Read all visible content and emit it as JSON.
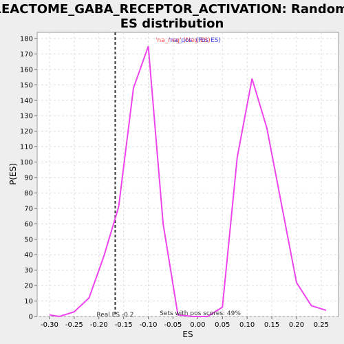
{
  "chart_data": {
    "type": "line",
    "title": "REACTOME_GABA_RECEPTOR_ACTIVATION: Random ES distribution",
    "title_lines": [
      "REACTOME_GABA_RECEPTOR_ACTIVATION: Random",
      "ES distribution"
    ],
    "xlabel": "ES",
    "ylabel": "P(ES)",
    "xlim": [
      -0.325,
      0.285
    ],
    "ylim": [
      0,
      184
    ],
    "x_ticks": [
      -0.3,
      -0.25,
      -0.2,
      -0.15,
      -0.1,
      -0.05,
      0.0,
      0.05,
      0.1,
      0.15,
      0.2,
      0.25
    ],
    "x_tick_labels": [
      "-0.30",
      "-0.25",
      "-0.20",
      "-0.15",
      "-0.10",
      "-0.05",
      "0.00",
      "0.05",
      "0.10",
      "0.15",
      "0.20",
      "0.25"
    ],
    "y_ticks": [
      0,
      10,
      20,
      30,
      40,
      50,
      60,
      70,
      80,
      90,
      100,
      110,
      120,
      130,
      140,
      150,
      160,
      170,
      180
    ],
    "grid": true,
    "series": [
      {
        "color": "#ee44ee",
        "x": [
          -0.3,
          -0.28,
          -0.25,
          -0.22,
          -0.19,
          -0.16,
          -0.13,
          -0.1,
          -0.07,
          -0.04,
          -0.01,
          0.02,
          0.05,
          0.08,
          0.11,
          0.14,
          0.17,
          0.2,
          0.23,
          0.26
        ],
        "y": [
          1,
          0,
          3,
          12,
          39,
          71,
          148,
          175,
          60,
          1,
          0,
          0,
          6,
          103,
          154,
          122,
          72,
          22,
          7,
          4
        ]
      }
    ],
    "real_es": -0.167,
    "real_es_label": "Real ES -0.2",
    "pos_scores_label": "Sets with pos scores: 49%",
    "legend": {
      "placement": "top-center",
      "neg_label": "'na_neg' (Neg ES)",
      "pos_label": "'na_pos' (Pos ES)",
      "neg_color": "#ff4444",
      "pos_color": "#4444dd"
    },
    "colors": {
      "line": "#ee44ee",
      "real_es_line": "#333333",
      "grid": "#dddddd",
      "plot_bg": "#ffffff",
      "page_bg": "#eeeeee"
    }
  }
}
